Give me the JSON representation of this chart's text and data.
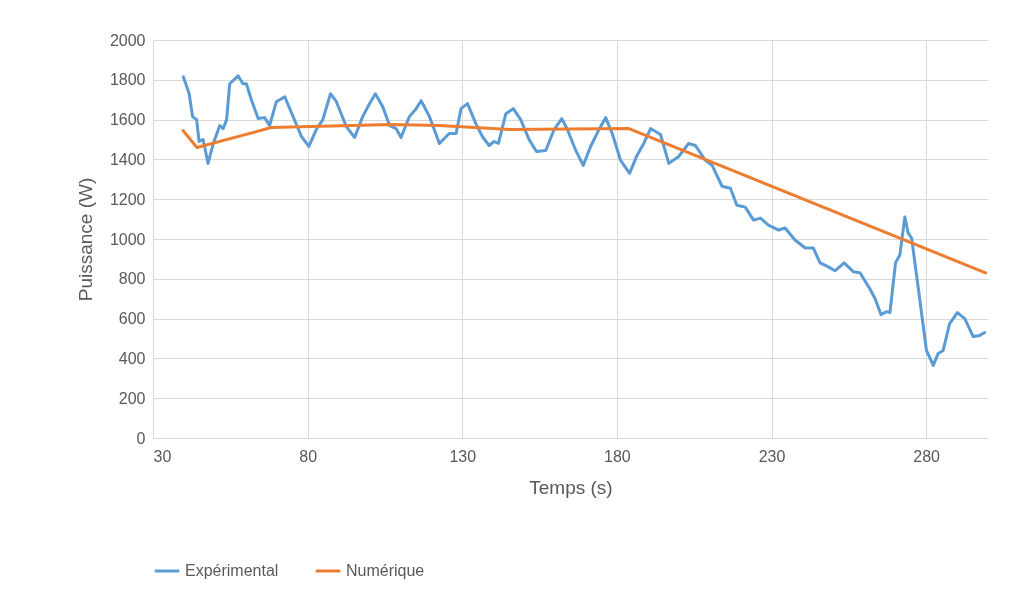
{
  "chart_data": {
    "type": "line",
    "xlabel": "Temps (s)",
    "ylabel": "Puissance (W)",
    "xlim": [
      30,
      300
    ],
    "xticks": [
      30,
      80,
      130,
      180,
      230,
      280
    ],
    "ylim": [
      0,
      2000
    ],
    "yticks": [
      0,
      200,
      400,
      600,
      800,
      1000,
      1200,
      1400,
      1600,
      1800,
      2000
    ],
    "grid": true,
    "legend": "bottom",
    "marker": "none",
    "line_style": "solid",
    "series": [
      {
        "name": "Expérimental",
        "color": "#5b9bd5",
        "x": [
          39.8,
          41.7,
          42.8,
          44.1,
          44.9,
          46.2,
          47.8,
          49.5,
          51.6,
          52.7,
          53.8,
          54.8,
          57.5,
          59.1,
          60.2,
          61.8,
          64.0,
          66.1,
          67.7,
          69.9,
          72.6,
          75.3,
          78.0,
          80.4,
          82.8,
          84.9,
          87.4,
          89.3,
          92.5,
          95.2,
          97.8,
          100.0,
          101.9,
          104.3,
          106.5,
          108.6,
          110.2,
          112.9,
          115.1,
          116.7,
          119.4,
          122.6,
          125.8,
          128.0,
          129.6,
          131.7,
          134.4,
          136.5,
          138.7,
          140.3,
          141.7,
          144.1,
          146.5,
          148.9,
          151.6,
          154.0,
          157.0,
          159.7,
          162.2,
          164.0,
          166.7,
          169.1,
          171.5,
          174.2,
          176.4,
          178.5,
          181.2,
          184.1,
          186.5,
          188.7,
          190.9,
          194.1,
          196.8,
          200.0,
          203.2,
          205.4,
          208.6,
          210.8,
          214.0,
          216.7,
          218.8,
          221.5,
          224.2,
          226.4,
          229.0,
          232.3,
          234.4,
          237.6,
          240.9,
          243.5,
          245.7,
          248.4,
          250.5,
          253.5,
          256.5,
          258.6,
          261.8,
          263.5,
          265.4,
          267.2,
          268.3,
          270.1,
          271.5,
          273.1,
          274.2,
          275.3,
          277.4,
          280.1,
          282.3,
          283.9,
          285.5,
          287.6,
          290.1,
          292.5,
          295.2,
          297.3,
          298.9
        ],
        "values": [
          1815,
          1730,
          1615,
          1600,
          1490,
          1500,
          1380,
          1480,
          1570,
          1555,
          1600,
          1780,
          1820,
          1780,
          1780,
          1700,
          1605,
          1610,
          1570,
          1690,
          1715,
          1615,
          1515,
          1465,
          1550,
          1600,
          1730,
          1690,
          1565,
          1510,
          1615,
          1680,
          1730,
          1665,
          1570,
          1555,
          1510,
          1615,
          1655,
          1695,
          1615,
          1480,
          1530,
          1530,
          1655,
          1680,
          1580,
          1515,
          1470,
          1490,
          1480,
          1630,
          1655,
          1600,
          1500,
          1440,
          1445,
          1550,
          1605,
          1550,
          1445,
          1370,
          1465,
          1550,
          1610,
          1530,
          1395,
          1330,
          1420,
          1480,
          1555,
          1525,
          1380,
          1415,
          1480,
          1470,
          1395,
          1370,
          1265,
          1255,
          1170,
          1160,
          1095,
          1105,
          1070,
          1045,
          1055,
          995,
          955,
          955,
          880,
          860,
          840,
          880,
          835,
          830,
          750,
          700,
          620,
          635,
          630,
          880,
          920,
          1110,
          1030,
          1005,
          760,
          440,
          365,
          425,
          440,
          575,
          630,
          600,
          510,
          515,
          530
        ]
      },
      {
        "name": "Numérique",
        "color": "#ed7d31",
        "x": [
          39.7,
          44.2,
          68.3,
          107,
          122.6,
          145.7,
          183.9,
          299.2
        ],
        "values": [
          1545,
          1460,
          1560,
          1575,
          1570,
          1550,
          1555,
          830
        ]
      }
    ]
  }
}
